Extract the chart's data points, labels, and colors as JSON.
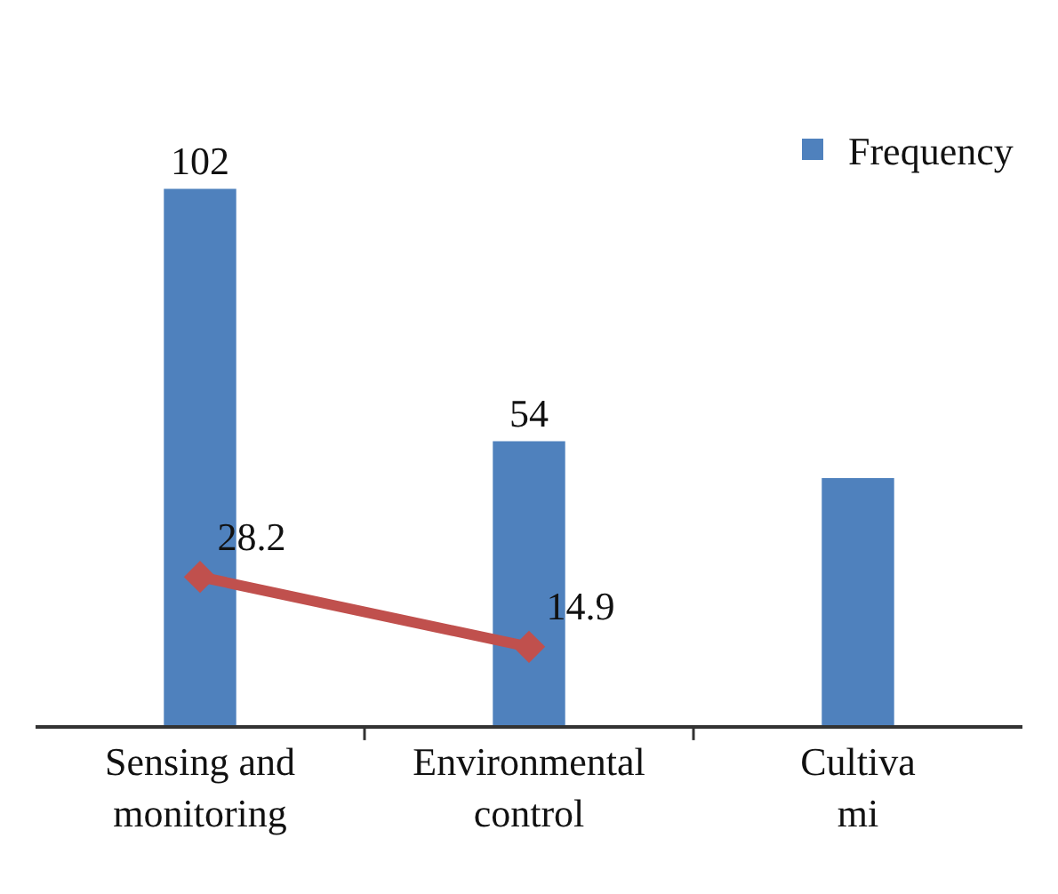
{
  "chart_data": {
    "type": "bar",
    "categories": [
      "Sensing and\nmonitoring",
      "Environmental\ncontrol",
      "Cultiva\nmi"
    ],
    "series": [
      {
        "name": "Frequency",
        "color": "#4f81bd",
        "values": [
          102,
          54,
          47
        ],
        "value_labels": [
          "102",
          "54",
          null
        ]
      },
      {
        "type": "line",
        "color": "#c0504d",
        "values": [
          28.2,
          14.9,
          null
        ],
        "value_labels": [
          "28.2",
          "14.9",
          null
        ],
        "marker": "diamond"
      }
    ],
    "legend": "top right",
    "grid": false
  }
}
